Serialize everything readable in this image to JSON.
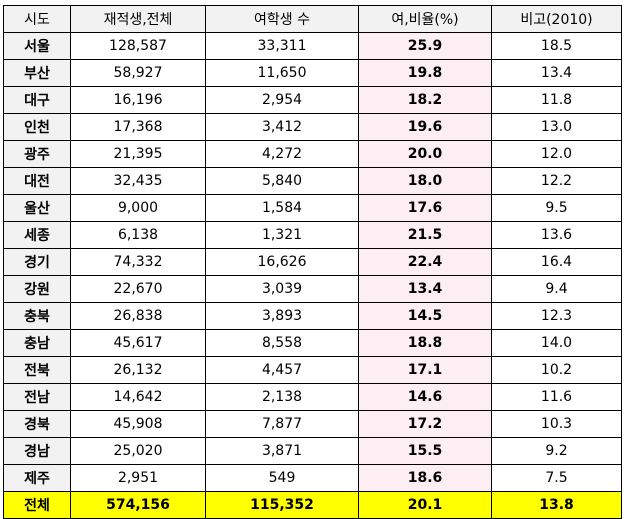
{
  "table": {
    "headers": [
      "시도",
      "재적생,전체",
      "여학생 수",
      "여,비율(%)",
      "비고(2010)"
    ],
    "rows": [
      [
        "서울",
        "128,587",
        "33,311",
        "25.9",
        "18.5"
      ],
      [
        "부산",
        "58,927",
        "11,650",
        "19.8",
        "13.4"
      ],
      [
        "대구",
        "16,196",
        "2,954",
        "18.2",
        "11.8"
      ],
      [
        "인천",
        "17,368",
        "3,412",
        "19.6",
        "13.0"
      ],
      [
        "광주",
        "21,395",
        "4,272",
        "20.0",
        "12.0"
      ],
      [
        "대전",
        "32,435",
        "5,840",
        "18.0",
        "12.2"
      ],
      [
        "울산",
        "9,000",
        "1,584",
        "17.6",
        "9.5"
      ],
      [
        "세종",
        "6,138",
        "1,321",
        "21.5",
        "13.6"
      ],
      [
        "경기",
        "74,332",
        "16,626",
        "22.4",
        "16.4"
      ],
      [
        "강원",
        "22,670",
        "3,039",
        "13.4",
        "9.4"
      ],
      [
        "충북",
        "26,838",
        "3,893",
        "14.5",
        "12.3"
      ],
      [
        "충남",
        "45,617",
        "8,558",
        "18.8",
        "14.0"
      ],
      [
        "전북",
        "26,132",
        "4,457",
        "17.1",
        "10.2"
      ],
      [
        "전남",
        "14,642",
        "2,138",
        "14.6",
        "11.6"
      ],
      [
        "경북",
        "45,908",
        "7,877",
        "17.2",
        "10.3"
      ],
      [
        "경남",
        "25,020",
        "3,871",
        "15.5",
        "9.2"
      ],
      [
        "제주",
        "2,951",
        "549",
        "18.6",
        "7.5"
      ]
    ],
    "total": [
      "전체",
      "574,156",
      "115,352",
      "20.1",
      "13.8"
    ]
  },
  "colors": {
    "header_bg": "#f2f2f2",
    "rate_bg": "#fdeef3",
    "total_bg": "#ffff00"
  }
}
